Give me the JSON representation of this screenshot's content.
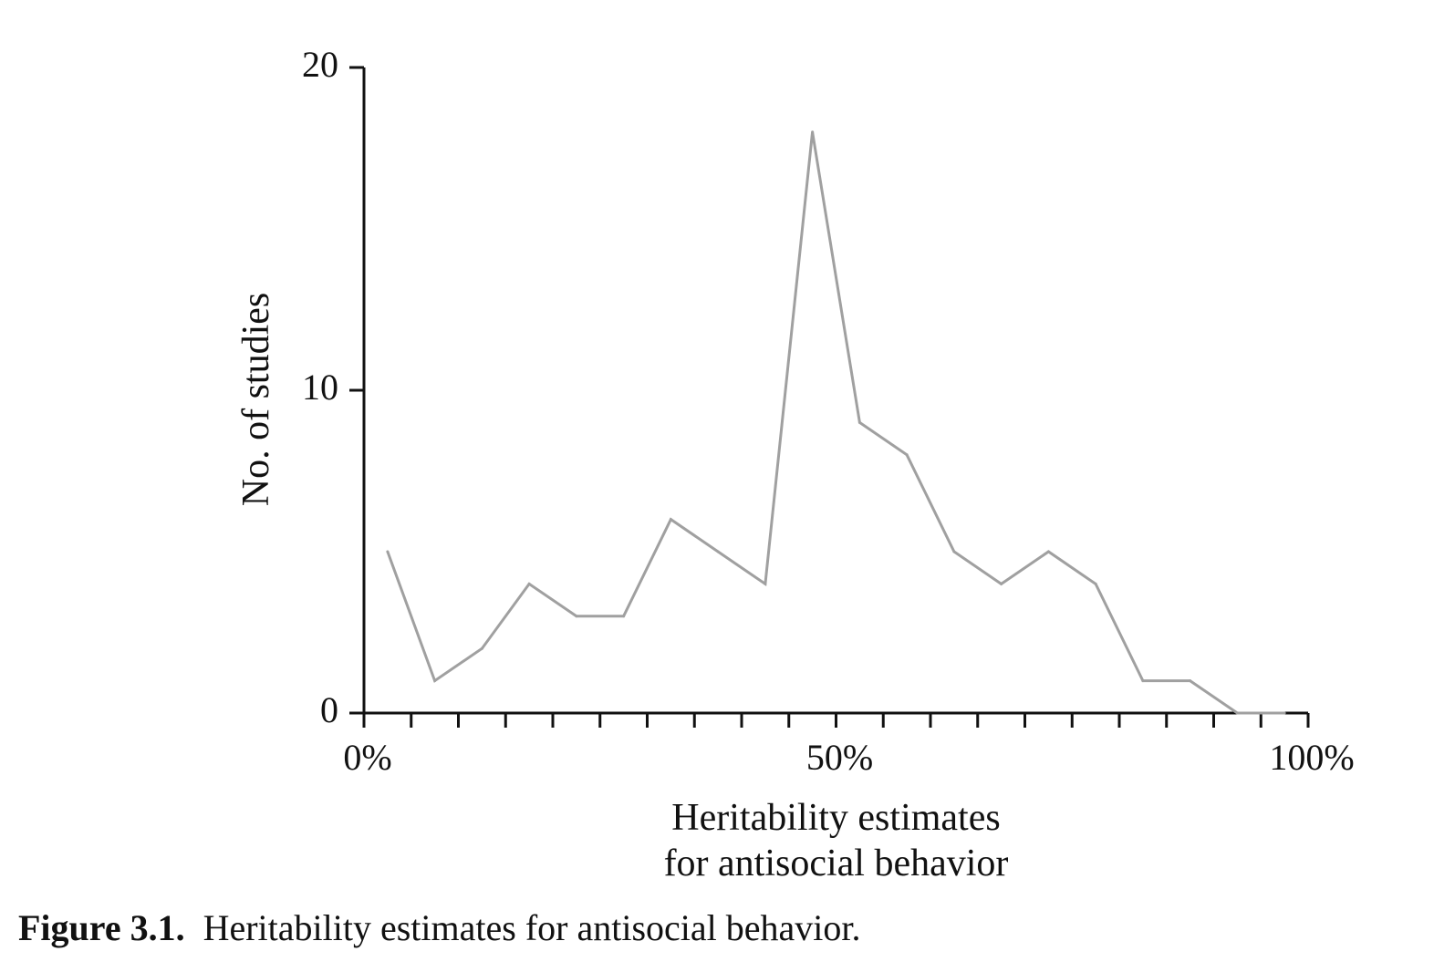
{
  "chart_data": {
    "type": "line",
    "title": "",
    "xlabel_lines": [
      "Heritability estimates",
      "for antisocial behavior"
    ],
    "ylabel": "No. of studies",
    "xlim": [
      0,
      100
    ],
    "ylim": [
      0,
      20
    ],
    "x_tick_labels": [
      {
        "value": 0,
        "label": "0%"
      },
      {
        "value": 50,
        "label": "50%"
      },
      {
        "value": 100,
        "label": "100%"
      }
    ],
    "y_tick_labels": [
      {
        "value": 0,
        "label": "0"
      },
      {
        "value": 10,
        "label": "10"
      },
      {
        "value": 20,
        "label": "20"
      }
    ],
    "x_minor_ticks": [
      5,
      10,
      15,
      20,
      25,
      30,
      35,
      40,
      45,
      50,
      55,
      60,
      65,
      70,
      75,
      80,
      85,
      90,
      95,
      100
    ],
    "grid": false,
    "line_color": "#a0a0a0",
    "series": [
      {
        "name": "Studies",
        "x": [
          2.5,
          7.5,
          12.5,
          17.5,
          22.5,
          27.5,
          32.5,
          37.5,
          42.5,
          47.5,
          52.5,
          57.5,
          62.5,
          67.5,
          72.5,
          77.5,
          82.5,
          87.5,
          92.5,
          97.5
        ],
        "values": [
          5,
          1,
          2,
          4,
          3,
          3,
          6,
          5,
          4,
          18,
          9,
          8,
          5,
          4,
          5,
          4,
          1,
          1,
          0,
          0
        ]
      }
    ]
  },
  "caption": {
    "label": "Figure 3.1.",
    "text": "Heritability estimates for antisocial behavior."
  }
}
